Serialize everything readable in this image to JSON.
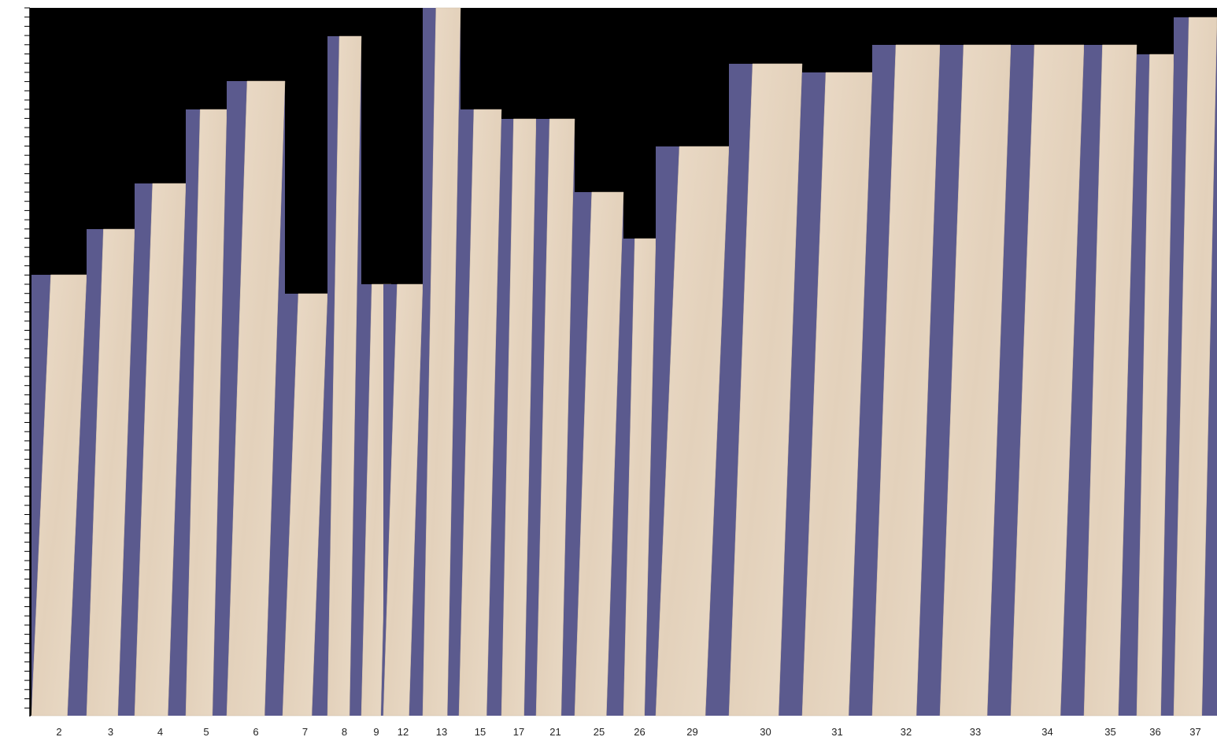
{
  "boards": [
    {
      "label": "2"
    },
    {
      "label": "3"
    },
    {
      "label": "4"
    },
    {
      "label": "5"
    },
    {
      "label": "6"
    },
    {
      "label": "7"
    },
    {
      "label": "8"
    },
    {
      "label": "9"
    },
    {
      "label": "12"
    },
    {
      "label": "13"
    },
    {
      "label": "15"
    },
    {
      "label": "17"
    },
    {
      "label": "21"
    },
    {
      "label": "25"
    },
    {
      "label": "26"
    },
    {
      "label": "29"
    },
    {
      "label": "30"
    },
    {
      "label": "31"
    },
    {
      "label": "32"
    },
    {
      "label": "33"
    },
    {
      "label": "34"
    },
    {
      "label": "35"
    },
    {
      "label": "36"
    },
    {
      "label": "37"
    }
  ]
}
